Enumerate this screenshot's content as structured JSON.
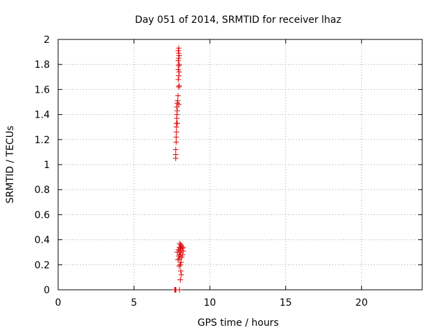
{
  "chart_data": {
    "type": "scatter",
    "title": "Day 051 of 2014, SRMTID for receiver lhaz",
    "xlabel": "GPS time / hours",
    "ylabel": "SRMTID / TECUs",
    "xlim": [
      0,
      24
    ],
    "ylim": [
      0,
      2
    ],
    "xticks": [
      0,
      5,
      10,
      15,
      20
    ],
    "xtick_labels": [
      "0",
      "5",
      "10",
      "15",
      "20"
    ],
    "yticks": [
      0,
      0.2,
      0.4,
      0.6,
      0.8,
      1.0,
      1.2,
      1.4,
      1.6,
      1.8,
      2.0
    ],
    "ytick_labels": [
      "0",
      "0.2",
      "0.4",
      "0.6",
      "0.8",
      "1",
      "1.2",
      "1.4",
      "1.6",
      "1.8",
      "2"
    ],
    "grid": true,
    "marker": "plus",
    "marker_color": "#dd0000",
    "points": [
      [
        7.68,
        0.0
      ],
      [
        7.72,
        0.0
      ],
      [
        7.76,
        0.0
      ],
      [
        8.0,
        0.0
      ],
      [
        8.05,
        0.08
      ],
      [
        8.12,
        0.12
      ],
      [
        8.08,
        0.15
      ],
      [
        7.98,
        0.19
      ],
      [
        8.05,
        0.2
      ],
      [
        8.1,
        0.22
      ],
      [
        7.9,
        0.24
      ],
      [
        8.0,
        0.25
      ],
      [
        8.15,
        0.26
      ],
      [
        7.95,
        0.27
      ],
      [
        8.05,
        0.28
      ],
      [
        8.2,
        0.28
      ],
      [
        7.85,
        0.3
      ],
      [
        8.0,
        0.3
      ],
      [
        8.1,
        0.31
      ],
      [
        8.25,
        0.31
      ],
      [
        7.92,
        0.32
      ],
      [
        8.05,
        0.33
      ],
      [
        8.18,
        0.33
      ],
      [
        8.0,
        0.34
      ],
      [
        8.12,
        0.35
      ],
      [
        8.22,
        0.34
      ],
      [
        8.08,
        0.36
      ],
      [
        8.02,
        0.37
      ],
      [
        7.75,
        1.05
      ],
      [
        7.75,
        1.08
      ],
      [
        7.75,
        1.12
      ],
      [
        7.78,
        1.18
      ],
      [
        7.78,
        1.22
      ],
      [
        7.8,
        1.26
      ],
      [
        7.8,
        1.3
      ],
      [
        7.8,
        1.33
      ],
      [
        7.85,
        1.33
      ],
      [
        7.82,
        1.37
      ],
      [
        7.83,
        1.4
      ],
      [
        7.85,
        1.43
      ],
      [
        7.82,
        1.46
      ],
      [
        7.85,
        1.49
      ],
      [
        7.95,
        1.48
      ],
      [
        7.88,
        1.51
      ],
      [
        7.9,
        1.55
      ],
      [
        7.95,
        1.62
      ],
      [
        7.98,
        1.63
      ],
      [
        7.92,
        1.68
      ],
      [
        7.95,
        1.71
      ],
      [
        7.98,
        1.74
      ],
      [
        7.92,
        1.76
      ],
      [
        7.95,
        1.79
      ],
      [
        7.98,
        1.8
      ],
      [
        7.92,
        1.83
      ],
      [
        7.95,
        1.85
      ],
      [
        7.98,
        1.87
      ],
      [
        7.95,
        1.89
      ],
      [
        7.92,
        1.91
      ],
      [
        7.95,
        1.93
      ]
    ]
  }
}
